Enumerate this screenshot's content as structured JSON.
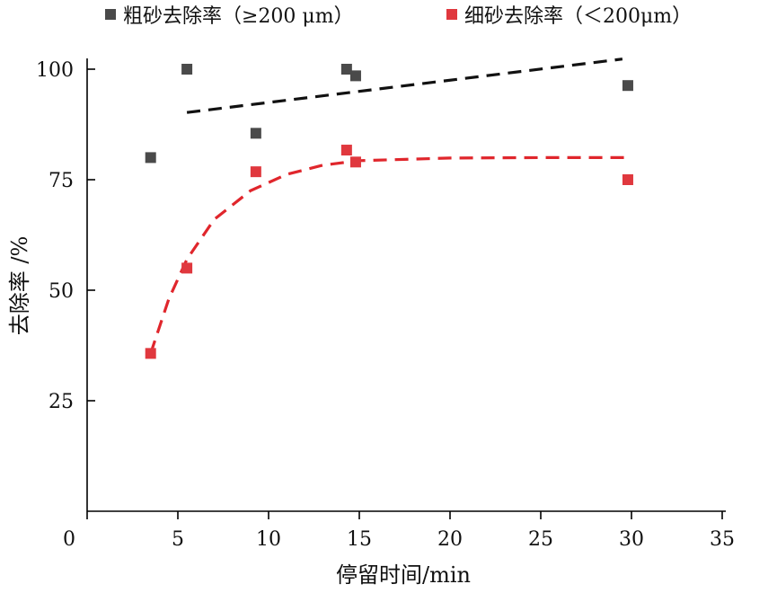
{
  "chart_data": {
    "type": "scatter",
    "title": "",
    "xlabel": "停留时间/min",
    "ylabel": "去除率 /%",
    "xlim": [
      0,
      35
    ],
    "ylim": [
      0,
      100
    ],
    "x_ticks": [
      0,
      5,
      10,
      15,
      20,
      25,
      30,
      35
    ],
    "y_ticks": [
      25,
      50,
      75,
      100
    ],
    "grid": false,
    "legend_position": "top",
    "series": [
      {
        "name": "粗砂去除率（≥200 μm）",
        "color": "#4a4a4a",
        "marker": "square",
        "points": [
          [
            3.5,
            80
          ],
          [
            5.5,
            100
          ],
          [
            9.3,
            85.5
          ],
          [
            14.3,
            100
          ],
          [
            14.8,
            98.5
          ],
          [
            29.8,
            96.3
          ]
        ],
        "trend": {
          "style": "dashed",
          "color": "#111111",
          "points": [
            [
              5.5,
              90.2
            ],
            [
              29.5,
              102.3
            ]
          ]
        }
      },
      {
        "name": "细砂去除率（＜200μm）",
        "color": "#e0383e",
        "marker": "square",
        "points": [
          [
            3.5,
            35.7
          ],
          [
            5.5,
            55
          ],
          [
            9.3,
            76.8
          ],
          [
            14.3,
            81.7
          ],
          [
            14.8,
            79
          ],
          [
            29.8,
            75
          ]
        ],
        "trend": {
          "style": "dashed",
          "color": "#e0262c",
          "points": [
            [
              3.5,
              35.7
            ],
            [
              4.5,
              48
            ],
            [
              5.5,
              57
            ],
            [
              7,
              66
            ],
            [
              9,
              72.5
            ],
            [
              11,
              76.2
            ],
            [
              13,
              78.3
            ],
            [
              15,
              79.3
            ],
            [
              20,
              79.9
            ],
            [
              25,
              80
            ],
            [
              30,
              80
            ]
          ]
        }
      }
    ]
  }
}
